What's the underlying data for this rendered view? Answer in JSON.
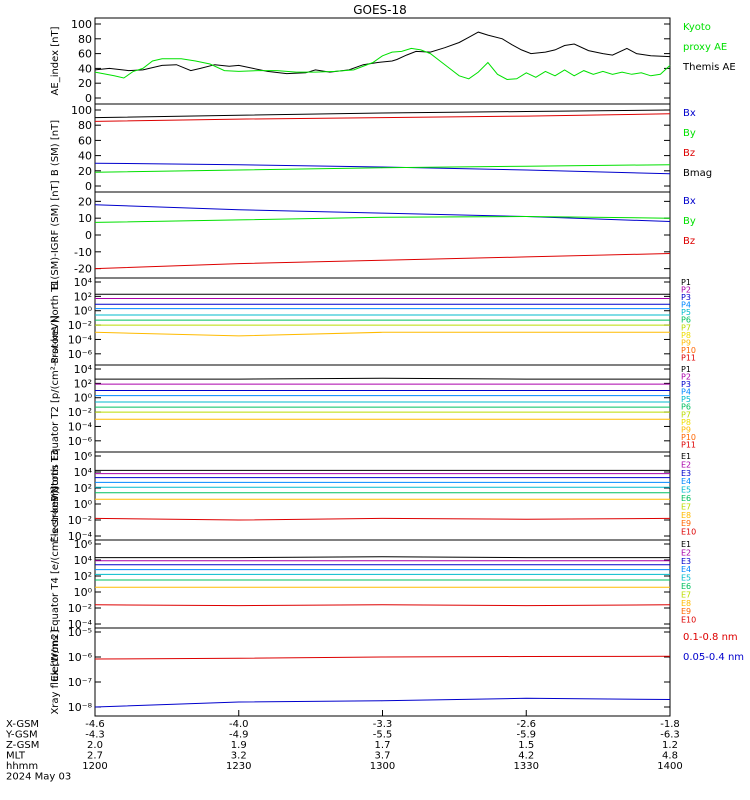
{
  "title": "GOES-18",
  "colors": {
    "black": "#000000",
    "green": "#00e000",
    "red": "#dd0000",
    "blue": "#0000cc",
    "magenta": "#aa00aa",
    "cyan": "#00bbcc",
    "orange": "#ff9900",
    "yellow": "#eedd00"
  },
  "chart_data": [
    {
      "type": "line",
      "ylabel": "AE_index [nT]",
      "ylim": [
        0,
        100
      ],
      "yticks": [
        "0",
        "20",
        "40",
        "60",
        "80",
        "100"
      ],
      "legend": [
        {
          "label": "Kyoto",
          "color": "#00e000"
        },
        {
          "label": "proxy AE",
          "color": "#00e000"
        },
        {
          "label": "Themis AE",
          "color": "#000000"
        }
      ],
      "series": [
        {
          "name": "Themis AE",
          "color": "#000000",
          "x": [
            0,
            3,
            7,
            10,
            14,
            17,
            20,
            22,
            25,
            28,
            30,
            33,
            36,
            40,
            44,
            46,
            49,
            53,
            56,
            59,
            62,
            63,
            65,
            67,
            70,
            73,
            76,
            78,
            80,
            82,
            85,
            87,
            89,
            91,
            94,
            96,
            98,
            100,
            103,
            106,
            108,
            111,
            113,
            116,
            120
          ],
          "y": [
            38,
            40,
            37,
            38,
            44,
            45,
            37,
            40,
            45,
            43,
            44,
            40,
            36,
            33,
            34,
            38,
            35,
            38,
            45,
            48,
            50,
            52,
            58,
            63,
            62,
            68,
            75,
            82,
            89,
            85,
            80,
            72,
            65,
            60,
            62,
            65,
            71,
            73,
            64,
            60,
            58,
            67,
            60,
            57,
            56
          ]
        },
        {
          "name": "Kyoto proxy AE",
          "color": "#00e000",
          "x": [
            0,
            4,
            6,
            8,
            10,
            12,
            14,
            16,
            18,
            21,
            24,
            27,
            30,
            34,
            38,
            42,
            46,
            50,
            54,
            58,
            60,
            62,
            64,
            66,
            68,
            70,
            72,
            74,
            76,
            78,
            80,
            82,
            84,
            86,
            88,
            90,
            92,
            94,
            96,
            98,
            100,
            102,
            104,
            106,
            108,
            110,
            112,
            114,
            116,
            118,
            120
          ],
          "y": [
            35,
            30,
            27,
            36,
            40,
            50,
            53,
            53,
            53,
            50,
            46,
            37,
            36,
            37,
            37,
            35,
            35,
            36,
            38,
            48,
            57,
            62,
            63,
            67,
            65,
            60,
            50,
            40,
            30,
            26,
            35,
            48,
            32,
            25,
            26,
            34,
            28,
            36,
            30,
            38,
            30,
            37,
            32,
            36,
            32,
            35,
            32,
            34,
            30,
            32,
            44
          ]
        }
      ]
    },
    {
      "type": "line",
      "ylabel": "B (SM) [nT]",
      "ylim": [
        0,
        100
      ],
      "yticks": [
        "0",
        "20",
        "40",
        "60",
        "80",
        "100"
      ],
      "legend": [
        {
          "label": "Bx",
          "color": "#0000cc"
        },
        {
          "label": "By",
          "color": "#00e000"
        },
        {
          "label": "Bz",
          "color": "#dd0000"
        },
        {
          "label": "Bmag",
          "color": "#000000"
        }
      ],
      "series": [
        {
          "name": "Bmag",
          "color": "#000000",
          "x": [
            0,
            30,
            60,
            90,
            120
          ],
          "y": [
            90,
            93,
            96,
            98,
            100
          ]
        },
        {
          "name": "Bz",
          "color": "#dd0000",
          "x": [
            0,
            30,
            60,
            90,
            120
          ],
          "y": [
            85,
            88,
            90,
            92,
            95
          ]
        },
        {
          "name": "Bx",
          "color": "#0000cc",
          "x": [
            0,
            30,
            60,
            90,
            120
          ],
          "y": [
            30,
            28,
            25,
            21,
            16
          ]
        },
        {
          "name": "By",
          "color": "#00e000",
          "x": [
            0,
            30,
            60,
            90,
            120
          ],
          "y": [
            18,
            21,
            24,
            26,
            28
          ]
        }
      ]
    },
    {
      "type": "line",
      "ylabel": "B (SM)-IGRF (SM) [nT]",
      "ylim": [
        -22,
        22
      ],
      "yticks": [
        "-20",
        "-10",
        "0",
        "10",
        "20"
      ],
      "legend": [
        {
          "label": "Bx",
          "color": "#0000cc"
        },
        {
          "label": "By",
          "color": "#00e000"
        },
        {
          "label": "Bz",
          "color": "#dd0000"
        }
      ],
      "series": [
        {
          "name": "Bx",
          "color": "#0000cc",
          "x": [
            0,
            30,
            60,
            90,
            120
          ],
          "y": [
            18,
            15,
            13,
            11,
            8
          ]
        },
        {
          "name": "By",
          "color": "#00e000",
          "x": [
            0,
            30,
            60,
            90,
            120
          ],
          "y": [
            7.5,
            9,
            10.5,
            11,
            10
          ]
        },
        {
          "name": "Bz",
          "color": "#dd0000",
          "x": [
            0,
            30,
            60,
            90,
            120
          ],
          "y": [
            -20,
            -17,
            -15,
            -13,
            -11
          ]
        }
      ]
    },
    {
      "type": "line",
      "ylabel": "Protons North T1",
      "ylim_log10": [
        -7,
        4
      ],
      "yticks": [
        "10⁻⁶",
        "10⁻⁴",
        "10⁻²",
        "10⁰",
        "10²",
        "10⁴"
      ],
      "legend": [
        {
          "label": "P1",
          "color": "#000000"
        },
        {
          "label": "P2",
          "color": "#aa00aa"
        },
        {
          "label": "P3",
          "color": "#0000cc"
        },
        {
          "label": "P4",
          "color": "#0088ff"
        },
        {
          "label": "P5",
          "color": "#00bbcc"
        },
        {
          "label": "P6",
          "color": "#00c060"
        },
        {
          "label": "P7",
          "color": "#bbdd00"
        },
        {
          "label": "P8",
          "color": "#eedd00"
        },
        {
          "label": "P9",
          "color": "#ffbb00"
        },
        {
          "label": "P10",
          "color": "#ff6600"
        },
        {
          "label": "P11",
          "color": "#dd0000"
        }
      ],
      "series": [
        {
          "name": "P1",
          "color": "#000000",
          "log10": [
            2.3,
            2.3,
            2.3,
            2.3,
            2.3
          ]
        },
        {
          "name": "P2",
          "color": "#aa00aa",
          "log10": [
            1.7,
            1.7,
            1.7,
            1.7,
            1.7
          ]
        },
        {
          "name": "P3",
          "color": "#0000cc",
          "log10": [
            0.9,
            0.9,
            0.9,
            0.9,
            0.9
          ]
        },
        {
          "name": "P4",
          "color": "#0088ff",
          "log10": [
            0.3,
            0.3,
            0.3,
            0.3,
            0.3
          ]
        },
        {
          "name": "P5",
          "color": "#00bbcc",
          "log10": [
            -0.6,
            -0.6,
            -0.6,
            -0.6,
            -0.6
          ]
        },
        {
          "name": "P6",
          "color": "#00c060",
          "log10": [
            -1.3,
            -1.3,
            -1.3,
            -1.3,
            -1.3
          ]
        },
        {
          "name": "P7",
          "color": "#bbdd00",
          "log10": [
            -2.0,
            -2.0,
            -2.0,
            -2.0,
            -2.0
          ]
        },
        {
          "name": "P9",
          "color": "#ffbb00",
          "log10": [
            -3.0,
            -3.5,
            -3.0,
            -3.0,
            -3.0
          ]
        }
      ]
    },
    {
      "type": "line",
      "ylabel": "Protons Equator T2 [p/(cm²-s-sr-keV)]",
      "ylim_log10": [
        -7,
        4
      ],
      "yticks": [
        "10⁻⁶",
        "10⁻⁴",
        "10⁻²",
        "10⁰",
        "10²",
        "10⁴"
      ],
      "legend": [
        {
          "label": "P1",
          "color": "#000000"
        },
        {
          "label": "P2",
          "color": "#aa00aa"
        },
        {
          "label": "P3",
          "color": "#0000cc"
        },
        {
          "label": "P4",
          "color": "#0088ff"
        },
        {
          "label": "P5",
          "color": "#00bbcc"
        },
        {
          "label": "P6",
          "color": "#00c060"
        },
        {
          "label": "P7",
          "color": "#bbdd00"
        },
        {
          "label": "P8",
          "color": "#eedd00"
        },
        {
          "label": "P9",
          "color": "#ffbb00"
        },
        {
          "label": "P10",
          "color": "#ff6600"
        },
        {
          "label": "P11",
          "color": "#dd0000"
        }
      ],
      "series": [
        {
          "name": "P1",
          "color": "#000000",
          "log10": [
            2.6,
            2.6,
            2.7,
            2.6,
            2.6
          ]
        },
        {
          "name": "P2",
          "color": "#aa00aa",
          "log10": [
            1.9,
            1.9,
            1.9,
            1.9,
            1.9
          ]
        },
        {
          "name": "P3",
          "color": "#0000cc",
          "log10": [
            1.0,
            1.0,
            1.0,
            1.0,
            1.0
          ]
        },
        {
          "name": "P4",
          "color": "#0088ff",
          "log10": [
            0.3,
            0.3,
            0.3,
            0.3,
            0.3
          ]
        },
        {
          "name": "P5",
          "color": "#00bbcc",
          "log10": [
            -0.6,
            -0.6,
            -0.6,
            -0.6,
            -0.6
          ]
        },
        {
          "name": "P6",
          "color": "#00c060",
          "log10": [
            -1.3,
            -1.3,
            -1.3,
            -1.3,
            -1.3
          ]
        },
        {
          "name": "P7",
          "color": "#bbdd00",
          "log10": [
            -2.0,
            -2.0,
            -2.0,
            -2.0,
            -2.0
          ]
        },
        {
          "name": "P9",
          "color": "#ffbb00",
          "log10": [
            -3.0,
            -3.0,
            -3.0,
            -3.0,
            -3.0
          ]
        }
      ]
    },
    {
      "type": "line",
      "ylabel": "Electrons North T3",
      "ylim_log10": [
        -4,
        6
      ],
      "yticks": [
        "10⁻⁴",
        "10⁻²",
        "10⁰",
        "10²",
        "10⁴",
        "10⁶"
      ],
      "legend": [
        {
          "label": "E1",
          "color": "#000000"
        },
        {
          "label": "E2",
          "color": "#aa00aa"
        },
        {
          "label": "E3",
          "color": "#0000cc"
        },
        {
          "label": "E4",
          "color": "#0088ff"
        },
        {
          "label": "E5",
          "color": "#00bbcc"
        },
        {
          "label": "E6",
          "color": "#00c060"
        },
        {
          "label": "E7",
          "color": "#bbdd00"
        },
        {
          "label": "E8",
          "color": "#ffbb00"
        },
        {
          "label": "E9",
          "color": "#ff6600"
        },
        {
          "label": "E10",
          "color": "#dd0000"
        }
      ],
      "series": [
        {
          "name": "E1",
          "color": "#000000",
          "log10": [
            4.2,
            4.2,
            4.2,
            4.2,
            4.2
          ]
        },
        {
          "name": "E2",
          "color": "#aa00aa",
          "log10": [
            3.8,
            3.8,
            3.8,
            3.8,
            3.8
          ]
        },
        {
          "name": "E3",
          "color": "#0000cc",
          "log10": [
            3.3,
            3.3,
            3.3,
            3.3,
            3.3
          ]
        },
        {
          "name": "E4",
          "color": "#0088ff",
          "log10": [
            2.7,
            2.7,
            2.7,
            2.7,
            2.7
          ]
        },
        {
          "name": "E5",
          "color": "#00bbcc",
          "log10": [
            2.1,
            2.1,
            2.1,
            2.1,
            2.1
          ]
        },
        {
          "name": "E6",
          "color": "#00c060",
          "log10": [
            1.4,
            1.4,
            1.4,
            1.4,
            1.4
          ]
        },
        {
          "name": "E7",
          "color": "#ffbb00",
          "log10": [
            0.6,
            0.6,
            0.6,
            0.6,
            0.6
          ]
        },
        {
          "name": "E10",
          "color": "#dd0000",
          "log10": [
            -1.8,
            -2.0,
            -1.8,
            -1.9,
            -1.8
          ]
        }
      ]
    },
    {
      "type": "line",
      "ylabel": "Electrons Equator T4 [e/(cm²-s-sr-keV)]",
      "ylim_log10": [
        -4,
        6
      ],
      "yticks": [
        "10⁻⁴",
        "10⁻²",
        "10⁰",
        "10²",
        "10⁴",
        "10⁶"
      ],
      "legend": [
        {
          "label": "E1",
          "color": "#000000"
        },
        {
          "label": "E2",
          "color": "#aa00aa"
        },
        {
          "label": "E3",
          "color": "#0000cc"
        },
        {
          "label": "E4",
          "color": "#0088ff"
        },
        {
          "label": "E5",
          "color": "#00bbcc"
        },
        {
          "label": "E6",
          "color": "#00c060"
        },
        {
          "label": "E7",
          "color": "#bbdd00"
        },
        {
          "label": "E8",
          "color": "#ffbb00"
        },
        {
          "label": "E9",
          "color": "#ff6600"
        },
        {
          "label": "E10",
          "color": "#dd0000"
        }
      ],
      "series": [
        {
          "name": "E1",
          "color": "#000000",
          "log10": [
            4.3,
            4.3,
            4.4,
            4.3,
            4.3
          ]
        },
        {
          "name": "E2",
          "color": "#aa00aa",
          "log10": [
            3.9,
            3.9,
            3.9,
            3.9,
            3.9
          ]
        },
        {
          "name": "E3",
          "color": "#0000cc",
          "log10": [
            3.4,
            3.4,
            3.4,
            3.4,
            3.4
          ]
        },
        {
          "name": "E4",
          "color": "#0088ff",
          "log10": [
            2.8,
            2.8,
            2.8,
            2.8,
            2.8
          ]
        },
        {
          "name": "E5",
          "color": "#00bbcc",
          "log10": [
            2.2,
            2.2,
            2.2,
            2.2,
            2.2
          ]
        },
        {
          "name": "E6",
          "color": "#00c060",
          "log10": [
            1.5,
            1.5,
            1.5,
            1.5,
            1.5
          ]
        },
        {
          "name": "E7",
          "color": "#ffbb00",
          "log10": [
            0.6,
            0.6,
            0.6,
            0.6,
            0.6
          ]
        },
        {
          "name": "E10",
          "color": "#dd0000",
          "log10": [
            -1.6,
            -1.7,
            -1.6,
            -1.7,
            -1.6
          ]
        }
      ]
    },
    {
      "type": "line",
      "ylabel": "Xray flux [W/m2]",
      "ylim_log10": [
        -8.2,
        -5
      ],
      "yticks": [
        "10⁻⁸",
        "10⁻⁷",
        "10⁻⁶",
        "10⁻⁵"
      ],
      "legend": [
        {
          "label": "0.1-0.8 nm",
          "color": "#dd0000"
        },
        {
          "label": "0.05-0.4 nm",
          "color": "#0000cc"
        }
      ],
      "series": [
        {
          "name": "0.1-0.8 nm",
          "color": "#dd0000",
          "log10": [
            -6.08,
            -6.05,
            -6.0,
            -5.98,
            -5.97
          ]
        },
        {
          "name": "0.05-0.4 nm",
          "color": "#0000cc",
          "log10": [
            -8.0,
            -7.8,
            -7.75,
            -7.65,
            -7.7
          ]
        }
      ]
    }
  ],
  "x_axis": {
    "row_labels": [
      "X-GSM",
      "Y-GSM",
      "Z-GSM",
      "MLT",
      "hhmm"
    ],
    "columns": [
      {
        "x": 0,
        "values": [
          "-4.6",
          "-4.3",
          "2.0",
          "2.7",
          "1200"
        ]
      },
      {
        "x": 30,
        "values": [
          "-4.0",
          "-4.9",
          "1.9",
          "3.2",
          "1230"
        ]
      },
      {
        "x": 60,
        "values": [
          "-3.3",
          "-5.5",
          "1.7",
          "3.7",
          "1300"
        ]
      },
      {
        "x": 90,
        "values": [
          "-2.6",
          "-5.9",
          "1.5",
          "4.2",
          "1330"
        ]
      },
      {
        "x": 120,
        "values": [
          "-1.8",
          "-6.3",
          "1.2",
          "4.8",
          "1400"
        ]
      }
    ],
    "date": "2024 May 03"
  }
}
